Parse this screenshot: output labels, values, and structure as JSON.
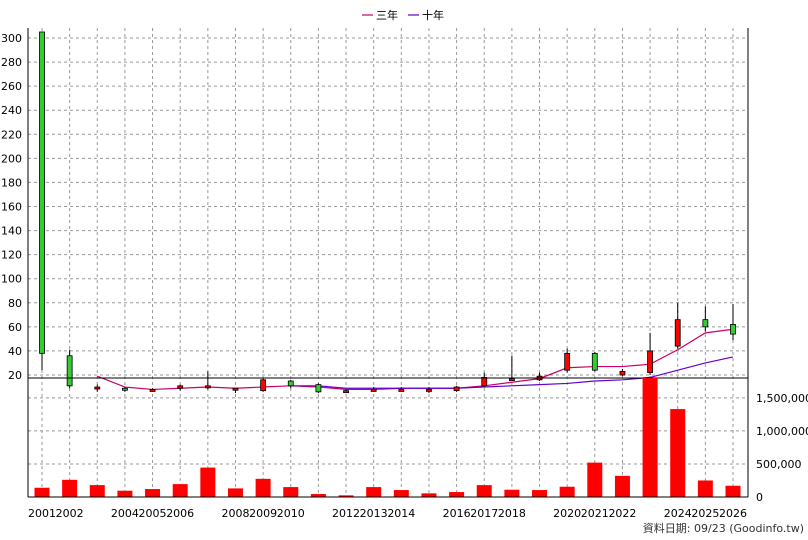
{
  "legend": [
    {
      "label": "三年",
      "color": "#cc0066"
    },
    {
      "label": "十年",
      "color": "#6600cc"
    }
  ],
  "source_note": "資料日期: 09/23 (Goodinfo.tw)",
  "colors": {
    "up": "#ff0000",
    "down": "#33cc33",
    "volume": "#ff0000",
    "grid": "#999999"
  },
  "chart_data": [
    {
      "type": "candlestick",
      "title": "",
      "ylim": [
        0,
        310
      ],
      "y_ticks": [
        20,
        40,
        60,
        80,
        100,
        120,
        140,
        160,
        180,
        200,
        220,
        240,
        260,
        280,
        300
      ],
      "grid": true,
      "legend_position": "top-center",
      "x_tick_labels": [
        "2001",
        "2002",
        "2004",
        "2005",
        "2006",
        "2008",
        "2009",
        "2010",
        "2012",
        "2013",
        "2014",
        "2016",
        "2017",
        "2018",
        "2020",
        "2021",
        "2022",
        "2024",
        "2025",
        "2026"
      ],
      "candles": [
        {
          "year": 2001,
          "open": 305,
          "high": 305,
          "low": 24,
          "close": 38
        },
        {
          "year": 2002,
          "open": 36,
          "high": 41,
          "low": 9,
          "close": 11
        },
        {
          "year": 2003,
          "open": 10,
          "high": 12,
          "low": 6,
          "close": 10
        },
        {
          "year": 2004,
          "open": 9,
          "high": 10,
          "low": 6,
          "close": 8
        },
        {
          "year": 2005,
          "open": 8,
          "high": 9,
          "low": 6,
          "close": 8
        },
        {
          "year": 2006,
          "open": 9,
          "high": 12,
          "low": 7,
          "close": 11
        },
        {
          "year": 2007,
          "open": 10,
          "high": 23,
          "low": 8,
          "close": 11
        },
        {
          "year": 2008,
          "open": 8,
          "high": 9,
          "low": 5,
          "close": 9
        },
        {
          "year": 2009,
          "open": 7,
          "high": 17,
          "low": 6,
          "close": 16
        },
        {
          "year": 2010,
          "open": 15,
          "high": 16,
          "low": 9,
          "close": 11
        },
        {
          "year": 2011,
          "open": 12,
          "high": 13,
          "low": 5,
          "close": 6
        },
        {
          "year": 2012,
          "open": 7,
          "high": 8,
          "low": 6,
          "close": 7
        },
        {
          "year": 2013,
          "open": 7,
          "high": 10,
          "low": 6,
          "close": 8
        },
        {
          "year": 2014,
          "open": 8,
          "high": 10,
          "low": 7,
          "close": 8
        },
        {
          "year": 2015,
          "open": 8,
          "high": 10,
          "low": 5,
          "close": 8
        },
        {
          "year": 2016,
          "open": 7,
          "high": 11,
          "low": 6,
          "close": 10
        },
        {
          "year": 2017,
          "open": 11,
          "high": 22,
          "low": 10,
          "close": 18
        },
        {
          "year": 2018,
          "open": 16,
          "high": 36,
          "low": 15,
          "close": 17
        },
        {
          "year": 2019,
          "open": 16,
          "high": 22,
          "low": 15,
          "close": 19
        },
        {
          "year": 2020,
          "open": 24,
          "high": 42,
          "low": 22,
          "close": 38
        },
        {
          "year": 2021,
          "open": 38,
          "high": 39,
          "low": 23,
          "close": 24
        },
        {
          "year": 2022,
          "open": 20,
          "high": 25,
          "low": 19,
          "close": 23
        },
        {
          "year": 2023,
          "open": 22,
          "high": 55,
          "low": 20,
          "close": 40
        },
        {
          "year": 2024,
          "open": 44,
          "high": 80,
          "low": 42,
          "close": 66
        },
        {
          "year": 2025,
          "open": 66,
          "high": 77,
          "low": 56,
          "close": 60
        },
        {
          "year": 2026,
          "open": 62,
          "high": 79,
          "low": 49,
          "close": 54
        }
      ],
      "series": [
        {
          "name": "三年",
          "color": "#cc0066",
          "x": [
            2003,
            2004,
            2005,
            2006,
            2007,
            2008,
            2009,
            2010,
            2011,
            2012,
            2013,
            2014,
            2015,
            2016,
            2017,
            2018,
            2019,
            2020,
            2021,
            2022,
            2023,
            2024,
            2025,
            2026
          ],
          "values": [
            19,
            10,
            8,
            9,
            10,
            9,
            10,
            11,
            10,
            8,
            8,
            9,
            9,
            9,
            11,
            14,
            17,
            26,
            27,
            27,
            29,
            41,
            55,
            58
          ]
        },
        {
          "name": "十年",
          "color": "#6600cc",
          "x": [
            2010,
            2011,
            2012,
            2013,
            2014,
            2015,
            2016,
            2017,
            2018,
            2019,
            2020,
            2021,
            2022,
            2023,
            2024,
            2025,
            2026
          ],
          "values": [
            11,
            11,
            9,
            9,
            9,
            9,
            9,
            10,
            11,
            12,
            13,
            15,
            16,
            18,
            24,
            30,
            35
          ]
        }
      ]
    },
    {
      "type": "bar",
      "title": "",
      "ylim": [
        0,
        1800000
      ],
      "y_tick_labels": [
        "0",
        "500,000",
        "1,000,000",
        "1,500,000"
      ],
      "y_ticks": [
        0,
        500000,
        1000000,
        1500000
      ],
      "grid": true,
      "categories": [
        2001,
        2002,
        2003,
        2004,
        2005,
        2006,
        2007,
        2008,
        2009,
        2010,
        2011,
        2012,
        2013,
        2014,
        2015,
        2016,
        2017,
        2018,
        2019,
        2020,
        2021,
        2022,
        2023,
        2024,
        2025,
        2026
      ],
      "values": [
        140000,
        260000,
        180000,
        95000,
        120000,
        195000,
        445000,
        130000,
        275000,
        150000,
        45000,
        25000,
        150000,
        105000,
        55000,
        75000,
        180000,
        110000,
        105000,
        155000,
        520000,
        320000,
        1800000,
        1330000,
        250000,
        170000
      ]
    }
  ]
}
